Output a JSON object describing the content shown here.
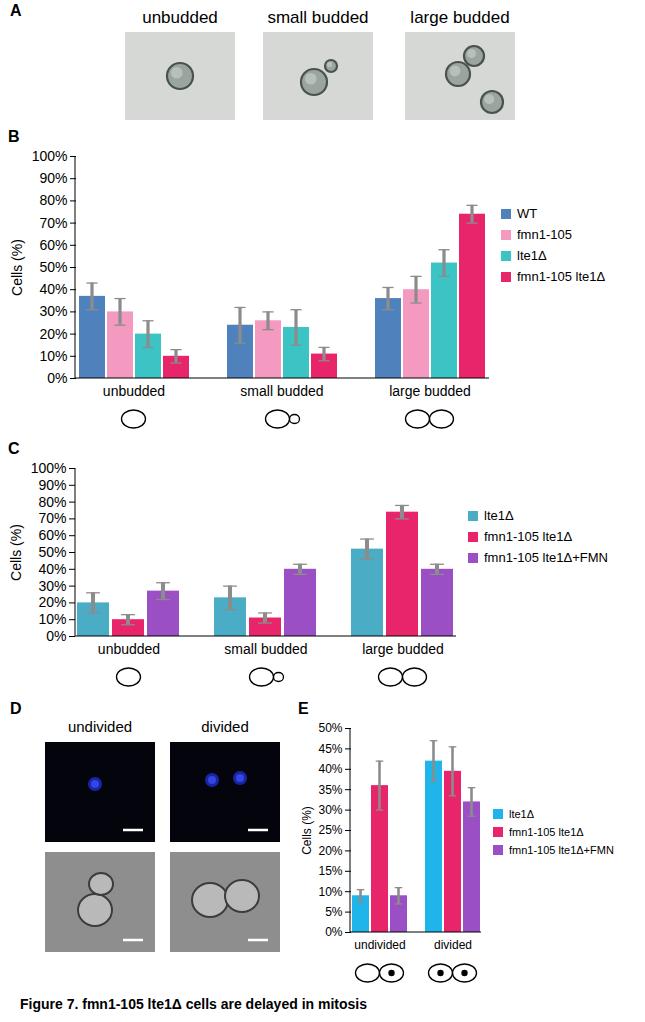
{
  "caption": "Figure 7. fmn1-105 lte1Δ cells are delayed in mitosis",
  "panel_A": {
    "letter": "A",
    "labels": [
      "unbudded",
      "small budded",
      "large budded"
    ]
  },
  "panel_D": {
    "letter": "D",
    "labels": [
      "undivided",
      "divided"
    ]
  },
  "chart_data": [
    {
      "panel": "B",
      "type": "bar",
      "categories": [
        "unbudded",
        "small budded",
        "large budded"
      ],
      "ylabel": "Cells (%)",
      "ylim": [
        0,
        100
      ],
      "yticks": [
        {
          "value": 0,
          "label": "0%"
        },
        {
          "value": 10,
          "label": "10%"
        },
        {
          "value": 20,
          "label": "20%"
        },
        {
          "value": 30,
          "label": "30%"
        },
        {
          "value": 40,
          "label": "40%"
        },
        {
          "value": 50,
          "label": "50%"
        },
        {
          "value": 60,
          "label": "60%"
        },
        {
          "value": 70,
          "label": "70%"
        },
        {
          "value": 80,
          "label": "80%"
        },
        {
          "value": 90,
          "label": "90%"
        },
        {
          "value": 100,
          "label": "100%"
        }
      ],
      "grid": false,
      "legend": "right",
      "series": [
        {
          "name": "WT",
          "color": "#4f81bd",
          "values": [
            37,
            24,
            36
          ],
          "errors": [
            6,
            8,
            5
          ]
        },
        {
          "name": "fmn1-105",
          "color": "#f49ac1",
          "values": [
            30,
            26,
            40
          ],
          "errors": [
            6,
            4,
            6
          ]
        },
        {
          "name": "lte1Δ",
          "color": "#3cc4c4",
          "values": [
            20,
            23,
            52
          ],
          "errors": [
            6,
            8,
            6
          ]
        },
        {
          "name": "fmn1-105 lte1Δ",
          "color": "#e8246b",
          "values": [
            10,
            11,
            74
          ],
          "errors": [
            3,
            3,
            4
          ]
        }
      ]
    },
    {
      "panel": "C",
      "type": "bar",
      "categories": [
        "unbudded",
        "small budded",
        "large budded"
      ],
      "ylabel": "Cells (%)",
      "ylim": [
        0,
        100
      ],
      "yticks": [
        {
          "value": 0,
          "label": "0%"
        },
        {
          "value": 10,
          "label": "10%"
        },
        {
          "value": 20,
          "label": "20%"
        },
        {
          "value": 30,
          "label": "30%"
        },
        {
          "value": 40,
          "label": "40%"
        },
        {
          "value": 50,
          "label": "50%"
        },
        {
          "value": 60,
          "label": "60%"
        },
        {
          "value": 70,
          "label": "70%"
        },
        {
          "value": 80,
          "label": "80%"
        },
        {
          "value": 90,
          "label": "90%"
        },
        {
          "value": 100,
          "label": "100%"
        }
      ],
      "grid": false,
      "legend": "right",
      "series": [
        {
          "name": "lte1Δ",
          "color": "#4bacc6",
          "values": [
            20,
            23,
            52
          ],
          "errors": [
            6,
            7,
            6
          ]
        },
        {
          "name": "fmn1-105 lte1Δ",
          "color": "#e8246b",
          "values": [
            10,
            11,
            74
          ],
          "errors": [
            3,
            3,
            4
          ]
        },
        {
          "name": "fmn1-105 lte1Δ+FMN",
          "color": "#9b4fc4",
          "values": [
            27,
            40,
            40
          ],
          "errors": [
            5,
            3,
            3
          ]
        }
      ]
    },
    {
      "panel": "E",
      "type": "bar",
      "categories": [
        "undivided",
        "divided"
      ],
      "ylabel": "Cells (%)",
      "ylim": [
        0,
        50
      ],
      "yticks": [
        {
          "value": 0,
          "label": "0%"
        },
        {
          "value": 5,
          "label": "5%"
        },
        {
          "value": 10,
          "label": "10%"
        },
        {
          "value": 15,
          "label": "15%"
        },
        {
          "value": 20,
          "label": "20%"
        },
        {
          "value": 25,
          "label": "25%"
        },
        {
          "value": 30,
          "label": "30%"
        },
        {
          "value": 35,
          "label": "35%"
        },
        {
          "value": 40,
          "label": "40%"
        },
        {
          "value": 45,
          "label": "45%"
        },
        {
          "value": 50,
          "label": "50%"
        }
      ],
      "grid": false,
      "legend": "right",
      "series": [
        {
          "name": "lte1Δ",
          "color": "#1fb5ea",
          "values": [
            9,
            42
          ],
          "errors": [
            1.5,
            5
          ]
        },
        {
          "name": "fmn1-105 lte1Δ",
          "color": "#e8246b",
          "values": [
            36,
            39.5
          ],
          "errors": [
            6,
            6
          ]
        },
        {
          "name": "fmn1-105 lte1Δ+FMN",
          "color": "#9b4fc4",
          "values": [
            9,
            32
          ],
          "errors": [
            2,
            3.5
          ]
        }
      ]
    }
  ]
}
